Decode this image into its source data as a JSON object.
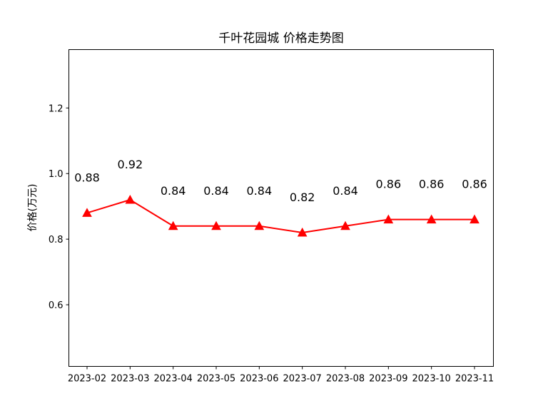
{
  "chart_data": {
    "type": "line",
    "title": "千叶花园城 价格走势图",
    "xlabel": "",
    "ylabel": "价格(万元)",
    "categories": [
      "2023-02",
      "2023-03",
      "2023-04",
      "2023-05",
      "2023-06",
      "2023-07",
      "2023-08",
      "2023-09",
      "2023-10",
      "2023-11"
    ],
    "series": [
      {
        "values": [
          0.88,
          0.92,
          0.84,
          0.84,
          0.84,
          0.82,
          0.84,
          0.86,
          0.86,
          0.86
        ],
        "color": "#ff0000",
        "marker": "triangle-up"
      }
    ],
    "data_labels": [
      "0.88",
      "0.92",
      "0.84",
      "0.84",
      "0.84",
      "0.82",
      "0.84",
      "0.86",
      "0.86",
      "0.86"
    ],
    "yticks": [
      0.6,
      0.8,
      1.0,
      1.2
    ],
    "ytick_labels": [
      "0.6",
      "0.8",
      "1.0",
      "1.2"
    ],
    "ylim": [
      0.412,
      1.378
    ],
    "grid": false,
    "legend": "none"
  }
}
